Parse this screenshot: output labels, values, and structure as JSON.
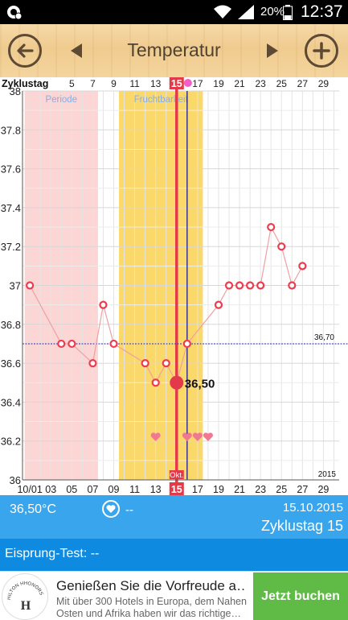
{
  "status_bar": {
    "battery": "20%",
    "time": "12:37",
    "icons": [
      "notification-icon",
      "wifi-icon",
      "signal-icon",
      "battery-icon"
    ]
  },
  "header": {
    "title": "Temperatur",
    "back_icon": "arrow-left-circle-icon",
    "add_icon": "plus-circle-icon"
  },
  "chart_data": {
    "type": "line",
    "cycle_label": "Zyklustag",
    "top_ticks": [
      "5",
      "7",
      "9",
      "11",
      "13",
      "15",
      "17",
      "19",
      "21",
      "23",
      "25",
      "27",
      "29"
    ],
    "bottom_ticks": [
      "10/01",
      "03",
      "05",
      "07",
      "09",
      "11",
      "13",
      "15",
      "17",
      "19",
      "21",
      "23",
      "25",
      "27",
      "29"
    ],
    "month_label": "Okt.",
    "year_label": "2015",
    "y_ticks": [
      "38",
      "37.8",
      "37.6",
      "37.4",
      "37.2",
      "37",
      "36.8",
      "36.6",
      "36.4",
      "36.2",
      "36"
    ],
    "ylim": [
      36,
      38
    ],
    "xlim": [
      0.3,
      30.5
    ],
    "regions": [
      {
        "label": "Periode",
        "from": 1,
        "to": 7,
        "color": "#fcd5d5"
      },
      {
        "label": "Fruchtbarkeit",
        "from": 10,
        "to": 17,
        "color": "#fbd86a"
      }
    ],
    "coverline": {
      "value": 36.7,
      "label": "36,70"
    },
    "selected_day": {
      "x": 15,
      "label": "15",
      "value": 36.5,
      "value_label": "36,50"
    },
    "line_x": 16,
    "points": [
      {
        "x": 1,
        "y": 37.0
      },
      {
        "x": 4,
        "y": 36.7
      },
      {
        "x": 5,
        "y": 36.7
      },
      {
        "x": 7,
        "y": 36.6
      },
      {
        "x": 8,
        "y": 36.9
      },
      {
        "x": 9,
        "y": 36.7
      },
      {
        "x": 12,
        "y": 36.6
      },
      {
        "x": 13,
        "y": 36.5
      },
      {
        "x": 14,
        "y": 36.6
      },
      {
        "x": 15,
        "y": 36.5
      },
      {
        "x": 16,
        "y": 36.7
      },
      {
        "x": 19,
        "y": 36.9
      },
      {
        "x": 20,
        "y": 37.0
      },
      {
        "x": 21,
        "y": 37.0
      },
      {
        "x": 22,
        "y": 37.0
      },
      {
        "x": 23,
        "y": 37.0
      },
      {
        "x": 24,
        "y": 37.3
      },
      {
        "x": 25,
        "y": 37.2
      },
      {
        "x": 26,
        "y": 37.0
      },
      {
        "x": 27,
        "y": 37.1
      }
    ],
    "hearts": [
      13,
      16,
      17,
      18
    ],
    "colors": {
      "line": "#f0a0a0",
      "point": "#ee3b4e",
      "selected": "#e33a4a",
      "coverline": "#1f2bb0",
      "marker_line": "#1a1a8a"
    }
  },
  "info": {
    "temperature": "36,50°C",
    "intercourse": "--",
    "date": "15.10.2015",
    "cycle_day": "Zyklustag 15"
  },
  "ovulation_test": {
    "label": "Eisprung-Test: --"
  },
  "ad": {
    "logo_text": "HILTON HHONORS",
    "title": "Genießen Sie die Vorfreude a…",
    "text": "Mit über 300 Hotels in Europa, dem Nahen Osten und Afrika haben wir das richtige…",
    "button": "Jetzt buchen"
  }
}
